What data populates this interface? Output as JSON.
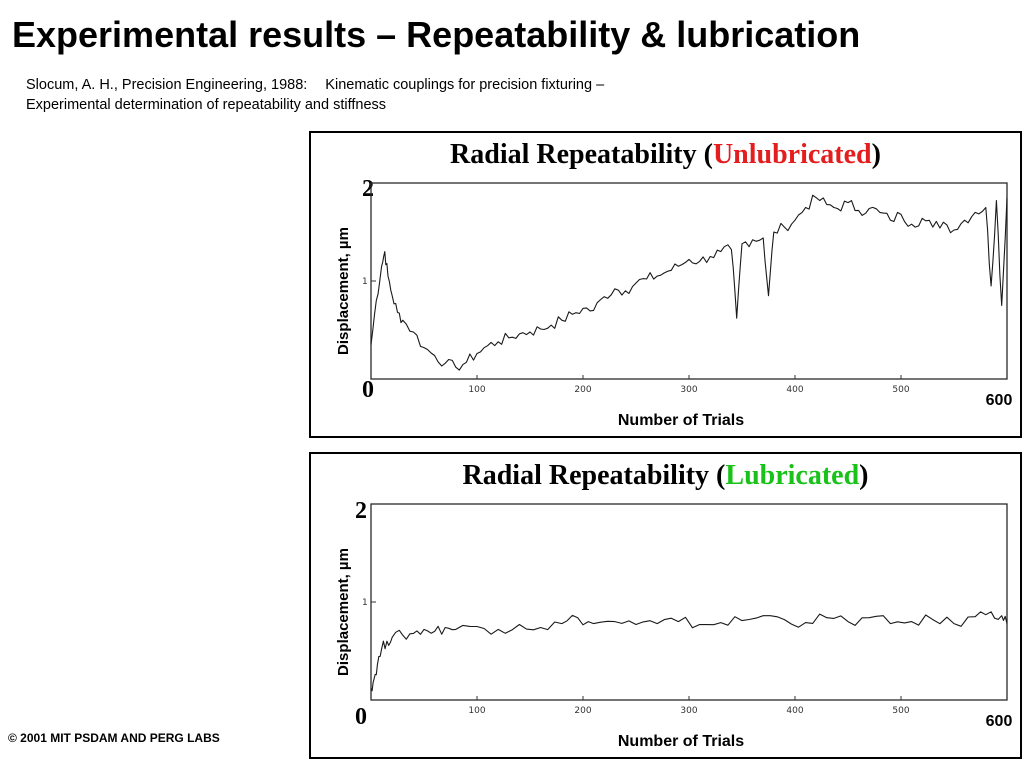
{
  "slide": {
    "title": "Experimental results – Repeatability & lubrication",
    "citation_line1_a": "Slocum, A. H., Precision Engineering, 1988:",
    "citation_line1_b": "Kinematic couplings for precision fixturing –",
    "citation_line2": "Experimental determination of repeatability and stiffness",
    "copyright": "© 2001 MIT PSDAM AND PERG LABS"
  },
  "colors": {
    "unlubricated": "#e41e1e",
    "lubricated": "#19c219"
  },
  "chart_data": [
    {
      "type": "line",
      "title_prefix": "Radial Repeatability (",
      "title_condition": "Unlubricated",
      "title_suffix": ")",
      "xlabel": "Number of Trials",
      "ylabel": "Displacement, µm",
      "y_min_label": "0",
      "y_max_label": "2",
      "y_mid_tick_label": "1",
      "x_max_label": "600",
      "x_tick_labels": [
        "100",
        "200",
        "300",
        "400",
        "500"
      ],
      "xlim": [
        0,
        600
      ],
      "ylim": [
        0,
        2
      ],
      "series": [
        {
          "x": [
            0,
            5,
            10,
            13,
            16,
            20,
            25,
            30,
            40,
            50,
            60,
            70,
            80,
            90,
            100,
            110,
            120,
            130,
            140,
            150,
            160,
            170,
            180,
            190,
            200,
            210,
            220,
            230,
            240,
            250,
            260,
            270,
            280,
            290,
            300,
            310,
            320,
            330,
            340,
            345,
            350,
            360,
            370,
            375,
            380,
            390,
            400,
            410,
            420,
            430,
            440,
            450,
            460,
            470,
            480,
            490,
            500,
            510,
            520,
            530,
            540,
            550,
            560,
            570,
            580,
            585,
            590,
            595,
            600
          ],
          "y": [
            0.35,
            0.8,
            1.15,
            1.3,
            1.05,
            0.85,
            0.68,
            0.6,
            0.48,
            0.32,
            0.24,
            0.16,
            0.12,
            0.17,
            0.26,
            0.34,
            0.38,
            0.42,
            0.46,
            0.48,
            0.51,
            0.55,
            0.6,
            0.66,
            0.72,
            0.7,
            0.84,
            0.92,
            0.9,
            0.98,
            1.02,
            1.05,
            1.1,
            1.15,
            1.22,
            1.2,
            1.25,
            1.3,
            1.32,
            0.62,
            1.38,
            1.42,
            1.44,
            0.85,
            1.5,
            1.55,
            1.62,
            1.75,
            1.85,
            1.78,
            1.74,
            1.8,
            1.72,
            1.74,
            1.7,
            1.62,
            1.68,
            1.58,
            1.64,
            1.55,
            1.6,
            1.52,
            1.62,
            1.7,
            1.75,
            0.95,
            1.82,
            0.75,
            1.85
          ]
        }
      ]
    },
    {
      "type": "line",
      "title_prefix": "Radial Repeatability (",
      "title_condition": "Lubricated",
      "title_suffix": ")",
      "xlabel": "Number of Trials",
      "ylabel": "Displacement, µm",
      "y_min_label": "0",
      "y_max_label": "2",
      "y_mid_tick_label": "1",
      "x_max_label": "600",
      "x_tick_labels": [
        "100",
        "200",
        "300",
        "400",
        "500"
      ],
      "xlim": [
        0,
        600
      ],
      "ylim": [
        0,
        2
      ],
      "series": [
        {
          "x": [
            0,
            3,
            6,
            10,
            15,
            20,
            30,
            40,
            50,
            60,
            70,
            80,
            100,
            120,
            140,
            160,
            180,
            195,
            210,
            230,
            250,
            270,
            290,
            310,
            330,
            350,
            370,
            390,
            410,
            430,
            450,
            470,
            490,
            510,
            530,
            550,
            570,
            585,
            595,
            600
          ],
          "y": [
            0.12,
            0.22,
            0.36,
            0.52,
            0.6,
            0.64,
            0.66,
            0.68,
            0.72,
            0.7,
            0.74,
            0.72,
            0.75,
            0.72,
            0.77,
            0.74,
            0.78,
            0.84,
            0.78,
            0.8,
            0.77,
            0.78,
            0.8,
            0.77,
            0.79,
            0.81,
            0.86,
            0.82,
            0.79,
            0.84,
            0.8,
            0.84,
            0.78,
            0.8,
            0.82,
            0.78,
            0.85,
            0.9,
            0.86,
            0.78
          ]
        }
      ]
    }
  ]
}
